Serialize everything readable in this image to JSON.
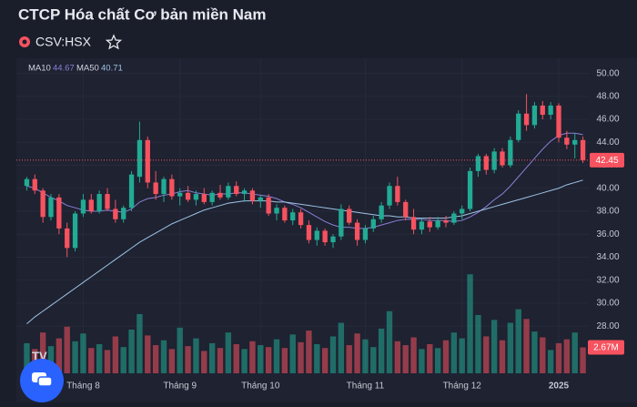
{
  "chart_data": {
    "type": "candlestick",
    "title": "CTCP Hóa chất Cơ bản miền Nam",
    "symbol": "CSV:HSX",
    "open": [
      40.2,
      40.8,
      39.8,
      37.5,
      39.2,
      36.5,
      34.8,
      37.8,
      39,
      38,
      39.5,
      38.2,
      37.3,
      38.3,
      41,
      44.2,
      40.5,
      39.5,
      40.8,
      39.3,
      39.6,
      39,
      39.5,
      38.8,
      39.6,
      39.2,
      40.2,
      39.5,
      39.8,
      38.9,
      39.2,
      37.8,
      38.3,
      37.2,
      37.9,
      36.8,
      35.5,
      36.3,
      35.3,
      35.8,
      38.2,
      37,
      35.5,
      36.5,
      37.3,
      38.5,
      40.2,
      38.8,
      37.5,
      36.4,
      37.1,
      36.6,
      37.2,
      37,
      37.8,
      38.2,
      41.5,
      42.8,
      41.6,
      43.2,
      42,
      44.2,
      46.5,
      45.5,
      47.2,
      46.4,
      47.2,
      44.4,
      43.8,
      44.2
    ],
    "high": [
      41,
      41.2,
      40,
      39.5,
      39.5,
      37,
      38,
      39.5,
      39.5,
      39.8,
      40,
      39,
      38.5,
      41.5,
      45.8,
      44.5,
      41.5,
      41,
      41.2,
      40,
      40.2,
      39.8,
      40,
      39.8,
      40.3,
      40.5,
      40.6,
      40,
      40,
      39.4,
      39.5,
      38.6,
      38.5,
      38.2,
      38.2,
      37.2,
      36.6,
      36.5,
      36,
      38.6,
      38.5,
      37.3,
      36.8,
      37.6,
      38.8,
      40.5,
      41,
      39,
      38.2,
      37.4,
      37.5,
      37.5,
      37.6,
      38,
      38.5,
      41.8,
      43,
      43,
      43.5,
      43.5,
      44.5,
      46.8,
      48.2,
      47.5,
      47.6,
      47.5,
      47.4,
      45,
      44.8,
      44.5
    ],
    "low": [
      39.8,
      39.5,
      37,
      37.2,
      36,
      34,
      34.5,
      37.5,
      37.8,
      37.8,
      38,
      37,
      37,
      38,
      40.5,
      40,
      39,
      38.8,
      39,
      38.5,
      38.8,
      38.5,
      38.6,
      38.5,
      39,
      39,
      39.3,
      38.8,
      38.6,
      38.3,
      37.6,
      37.2,
      37,
      36.8,
      36.5,
      35.2,
      35,
      35,
      34.8,
      35.5,
      36.8,
      35,
      35.2,
      36.2,
      37,
      38.2,
      38.5,
      37.2,
      36,
      36,
      36.2,
      36.4,
      36.6,
      36.8,
      37.3,
      38,
      41,
      41.2,
      41.3,
      41.8,
      41.8,
      44,
      45,
      45.2,
      46,
      46,
      44,
      43.4,
      42.6,
      42.2
    ],
    "close": [
      40.8,
      39.8,
      37.5,
      39.2,
      36.5,
      34.8,
      37.8,
      39,
      38,
      39.5,
      38.2,
      37.3,
      38.3,
      41.2,
      44.2,
      40.5,
      39.5,
      40.8,
      39.3,
      39.6,
      39,
      39.5,
      38.8,
      39.6,
      39.2,
      40.2,
      39.5,
      39.8,
      38.9,
      39.2,
      37.8,
      38.3,
      37.2,
      37.9,
      36.8,
      35.5,
      36.3,
      35.3,
      35.8,
      38.2,
      37,
      35.5,
      36.5,
      37.3,
      38.5,
      40.2,
      38.8,
      37.5,
      36.4,
      37.1,
      36.6,
      37.2,
      37,
      37.8,
      38.2,
      41.5,
      42.8,
      41.6,
      43.2,
      42,
      44.2,
      46.5,
      45.5,
      47.2,
      46.4,
      47.2,
      44.4,
      43.8,
      44.2,
      42.45
    ],
    "volume": [
      3.1,
      2.5,
      4.2,
      2.8,
      3.6,
      4.8,
      3.3,
      4.1,
      2.6,
      3,
      2.4,
      3.8,
      2.7,
      4.5,
      6.1,
      3.9,
      2.9,
      3.4,
      2.5,
      4.7,
      2.8,
      3.6,
      2.3,
      3.1,
      2.6,
      4.2,
      3,
      2.5,
      3.3,
      2.9,
      2.7,
      3.5,
      2.6,
      4,
      3.2,
      4.4,
      3,
      2.6,
      3.8,
      5.2,
      2.9,
      4.1,
      3.5,
      2.7,
      4.6,
      6.4,
      3.3,
      2.9,
      3.7,
      2.5,
      3,
      2.6,
      3.4,
      4.2,
      3.6,
      10.2,
      6,
      3.8,
      5.5,
      3.4,
      5.2,
      6.6,
      5.6,
      4.3,
      3.7,
      2.4,
      3.1,
      3.5,
      4.2,
      2.67
    ],
    "volume_value_labels": [
      null,
      null,
      null,
      null,
      null,
      null,
      null,
      null,
      null,
      null,
      null,
      null,
      null,
      null,
      null,
      null,
      null,
      null,
      null,
      null,
      null,
      null,
      null,
      null,
      null,
      null,
      null,
      null,
      null,
      null,
      null,
      null,
      null,
      null,
      null,
      null,
      null,
      null,
      null,
      null,
      null,
      null,
      null,
      null,
      null,
      null,
      null,
      null,
      null,
      null,
      null,
      null,
      null,
      null,
      null,
      null,
      null,
      null,
      null,
      null,
      null,
      null,
      null,
      null,
      null,
      null,
      null,
      null,
      null,
      "2.67M"
    ],
    "volume_lim": [
      0,
      10.5
    ],
    "series": [
      {
        "name": "MA10",
        "color": "#8a7fd6",
        "values": [
          40.2,
          40,
          39.6,
          39.2,
          38.9,
          38.5,
          38.3,
          38.1,
          38,
          38,
          38.1,
          38,
          37.9,
          38.2,
          38.8,
          39.1,
          39.2,
          39.4,
          39.5,
          39.7,
          39.8,
          39.6,
          39.5,
          39.4,
          39.5,
          39.5,
          39.6,
          39.6,
          39.5,
          39.4,
          39.3,
          39.1,
          38.8,
          38.6,
          38.3,
          37.9,
          37.5,
          37.1,
          36.8,
          36.6,
          36.6,
          36.5,
          36.5,
          36.6,
          36.8,
          37,
          37.2,
          37.3,
          37.3,
          37.3,
          37.2,
          37.2,
          37.2,
          37.1,
          37.2,
          37.5,
          37.9,
          38.4,
          39,
          39.5,
          40.2,
          41,
          41.8,
          42.6,
          43.4,
          44.1,
          44.6,
          44.8,
          44.8,
          44.67
        ]
      },
      {
        "name": "MA50",
        "color": "#9fc3e6",
        "values": [
          28.2,
          28.8,
          29.3,
          29.8,
          30.3,
          30.8,
          31.3,
          31.8,
          32.3,
          32.8,
          33.3,
          33.8,
          34.3,
          34.8,
          35.3,
          35.7,
          36.1,
          36.5,
          36.9,
          37.2,
          37.5,
          37.8,
          38.1,
          38.3,
          38.5,
          38.7,
          38.8,
          38.9,
          38.9,
          38.9,
          38.9,
          38.8,
          38.8,
          38.7,
          38.6,
          38.5,
          38.4,
          38.3,
          38.2,
          38.1,
          38,
          37.9,
          37.8,
          37.7,
          37.6,
          37.6,
          37.5,
          37.5,
          37.4,
          37.4,
          37.4,
          37.4,
          37.4,
          37.5,
          37.6,
          37.8,
          38,
          38.2,
          38.4,
          38.6,
          38.8,
          39,
          39.2,
          39.4,
          39.6,
          39.8,
          40,
          40.3,
          40.5,
          40.71
        ]
      }
    ],
    "up_color": "#22ab94",
    "down_color": "#f7525f",
    "ylim": [
      26.9,
      51
    ],
    "yticks": [
      {
        "value": 28,
        "label": "28.00"
      },
      {
        "value": 30,
        "label": "30.00"
      },
      {
        "value": 32,
        "label": "32.00"
      },
      {
        "value": 34,
        "label": "34.00"
      },
      {
        "value": 36,
        "label": "36.00"
      },
      {
        "value": 38,
        "label": "38.00"
      },
      {
        "value": 40,
        "label": "40.00"
      },
      {
        "value": 42,
        "label": "42.00"
      },
      {
        "value": 44,
        "label": "44.00"
      },
      {
        "value": 46,
        "label": "46.00"
      },
      {
        "value": 48,
        "label": "48.00"
      },
      {
        "value": 50,
        "label": "50.00"
      }
    ],
    "xticks": [
      {
        "value": 7,
        "label": "Tháng 8"
      },
      {
        "value": 19,
        "label": "Tháng 9"
      },
      {
        "value": 29,
        "label": "Tháng 10"
      },
      {
        "value": 42,
        "label": "Tháng 11"
      },
      {
        "value": 54,
        "label": "Tháng 12"
      },
      {
        "value": 66,
        "label": "2025"
      }
    ],
    "grid": true
  }
}
